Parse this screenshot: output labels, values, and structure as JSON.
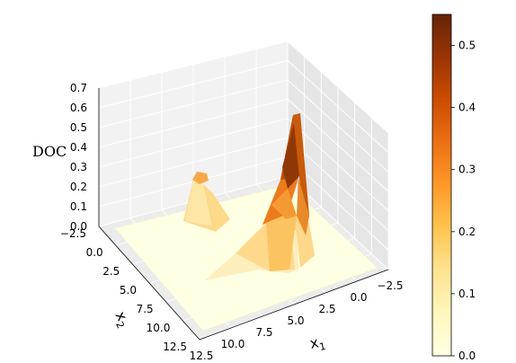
{
  "chart_data": {
    "type": "surface3d",
    "colormap": "YlOrBr",
    "z_axis": {
      "label": "DOC",
      "ticks": [
        "0.0",
        "0.1",
        "0.2",
        "0.3",
        "0.4",
        "0.5",
        "0.6",
        "0.7"
      ],
      "range": [
        0.0,
        0.7
      ]
    },
    "x1_axis": {
      "label_main": "x",
      "label_sub": "1",
      "ticks": [
        "12.5",
        "10.0",
        "7.5",
        "5.0",
        "2.5",
        "0.0",
        "−2.5"
      ],
      "range": [
        -2.5,
        12.5
      ]
    },
    "x2_axis": {
      "label_main": "x",
      "label_sub": "2",
      "ticks": [
        "−2.5",
        "0.0",
        "2.5",
        "5.0",
        "7.5",
        "10.0",
        "12.5"
      ],
      "range": [
        -2.5,
        12.5
      ]
    },
    "peaks": [
      {
        "x1": 2.0,
        "x2": 5.0,
        "height": 0.6
      },
      {
        "x1": 9.5,
        "x2": 1.5,
        "height": 0.25
      }
    ],
    "colorbar": {
      "ticks": [
        "0.0",
        "0.1",
        "0.2",
        "0.3",
        "0.4",
        "0.5"
      ],
      "range": [
        0.0,
        0.55
      ]
    },
    "grid": true
  }
}
